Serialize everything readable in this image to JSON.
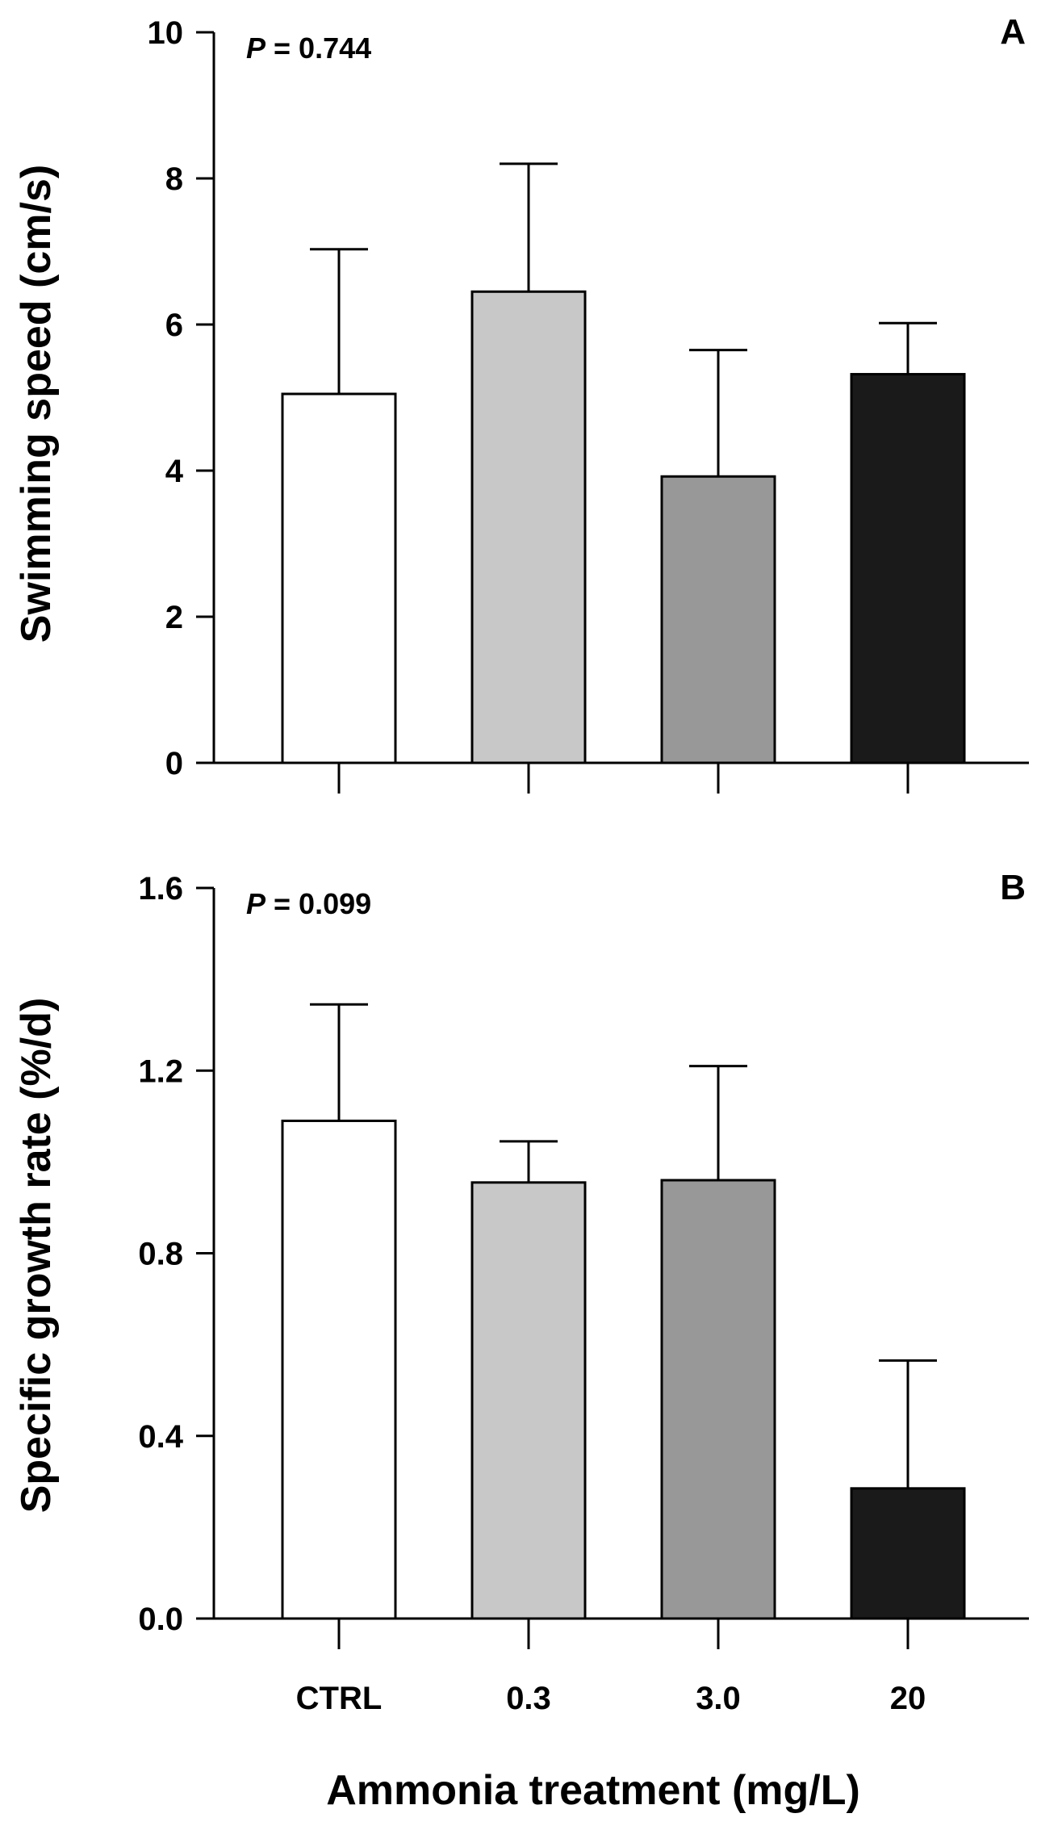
{
  "chart_data": [
    {
      "type": "bar",
      "panel_label": "A",
      "categories": [
        "CTRL",
        "0.3",
        "3.0",
        "20"
      ],
      "values": [
        5.05,
        6.45,
        3.92,
        5.32
      ],
      "errors": [
        1.98,
        1.75,
        1.73,
        0.7
      ],
      "bar_colors": [
        "#ffffff",
        "#c8c8c8",
        "#989898",
        "#1a1a1a"
      ],
      "ylabel": "Swimming speed (cm/s)",
      "ylim": [
        0,
        10
      ],
      "yticks": [
        0,
        2,
        4,
        6,
        8,
        10
      ],
      "ytick_labels": [
        "0",
        "2",
        "4",
        "6",
        "8",
        "10"
      ],
      "p_prefix": "P",
      "p_rest": " = 0.744",
      "show_x_labels": false
    },
    {
      "type": "bar",
      "panel_label": "B",
      "categories": [
        "CTRL",
        "0.3",
        "3.0",
        "20"
      ],
      "values": [
        1.09,
        0.955,
        0.96,
        0.285
      ],
      "errors": [
        0.255,
        0.09,
        0.25,
        0.28
      ],
      "bar_colors": [
        "#ffffff",
        "#c8c8c8",
        "#989898",
        "#1a1a1a"
      ],
      "ylabel": "Specific growth rate (%/d)",
      "ylim": [
        0,
        1.6
      ],
      "yticks": [
        0,
        0.4,
        0.8,
        1.2,
        1.6
      ],
      "ytick_labels": [
        "0.0",
        "0.4",
        "0.8",
        "1.2",
        "1.6"
      ],
      "p_prefix": "P",
      "p_rest": " = 0.099",
      "show_x_labels": true
    }
  ],
  "xlabel": "Ammonia treatment (mg/L)"
}
